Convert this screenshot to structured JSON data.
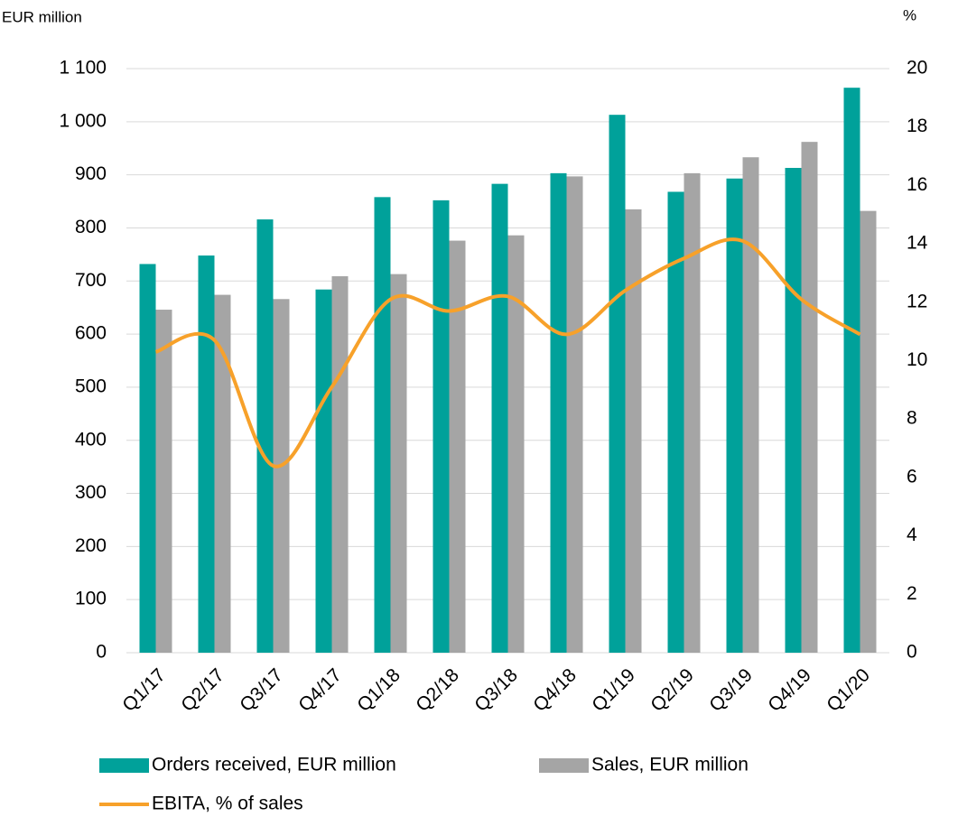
{
  "chart_data": {
    "type": "bar_line",
    "y_label": "EUR million",
    "y2_label": "%",
    "categories": [
      "Q1/17",
      "Q2/17",
      "Q3/17",
      "Q4/17",
      "Q1/18",
      "Q2/18",
      "Q3/18",
      "Q4/18",
      "Q1/19",
      "Q2/19",
      "Q3/19",
      "Q4/19",
      "Q1/20"
    ],
    "series": [
      {
        "name": "Orders received, EUR million",
        "color": "#00a19a",
        "type": "bar",
        "values": [
          732,
          748,
          816,
          684,
          858,
          852,
          883,
          903,
          1013,
          868,
          893,
          913,
          1064
        ]
      },
      {
        "name": "Sales, EUR million",
        "color": "#a5a5a5",
        "type": "bar",
        "values": [
          646,
          674,
          666,
          709,
          713,
          776,
          786,
          897,
          835,
          903,
          933,
          962,
          832
        ]
      },
      {
        "name": "EBITA, % of sales",
        "color": "#f7a12a",
        "type": "line",
        "axis": "y2",
        "values": [
          10.3,
          10.7,
          6.4,
          9.1,
          12.1,
          11.7,
          12.2,
          10.9,
          12.4,
          13.5,
          14.1,
          12.1,
          10.9
        ]
      }
    ],
    "ylim": [
      0,
      1100
    ],
    "yticks": [
      0,
      100,
      200,
      300,
      400,
      500,
      600,
      700,
      800,
      900,
      {
        "value": 1000,
        "label": "1 000"
      },
      {
        "value": 1100,
        "label": "1 100"
      }
    ],
    "y2lim": [
      0,
      20
    ],
    "y2ticks": [
      0,
      2,
      4,
      6,
      8,
      10,
      12,
      14,
      16,
      18,
      20
    ],
    "grid": true
  }
}
